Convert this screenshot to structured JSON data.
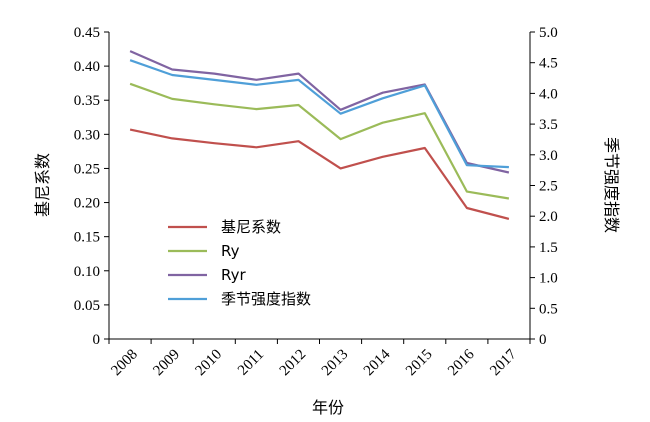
{
  "chart_data": {
    "type": "line",
    "xlabel": "年份",
    "ylabel_left": "基尼系数",
    "ylabel_right": "季节强度指数",
    "categories": [
      "2008",
      "2009",
      "2010",
      "2011",
      "2012",
      "2013",
      "2014",
      "2015",
      "2016",
      "2017"
    ],
    "ylim_left": [
      0,
      0.45
    ],
    "ylim_right": [
      0,
      5.0
    ],
    "left_ticks": [
      "0",
      "0.05",
      "0.10",
      "0.15",
      "0.20",
      "0.25",
      "0.30",
      "0.35",
      "0.40",
      "0.45"
    ],
    "right_ticks": [
      "0",
      "0.5",
      "1.0",
      "1.5",
      "2.0",
      "2.5",
      "3.0",
      "3.5",
      "4.0",
      "4.5",
      "5.0"
    ],
    "legend_position": "center-left",
    "series": [
      {
        "name": "基尼系数",
        "axis": "left",
        "color": "#c0504d",
        "values": [
          0.307,
          0.294,
          0.287,
          0.281,
          0.29,
          0.25,
          0.267,
          0.28,
          0.192,
          0.176
        ]
      },
      {
        "name": "Ry",
        "axis": "left",
        "color": "#9bbb59",
        "values": [
          0.374,
          0.352,
          0.344,
          0.337,
          0.343,
          0.293,
          0.317,
          0.331,
          0.216,
          0.206
        ]
      },
      {
        "name": "Ryr",
        "axis": "left",
        "color": "#8064a2",
        "values": [
          0.422,
          0.395,
          0.389,
          0.38,
          0.389,
          0.336,
          0.361,
          0.373,
          0.258,
          0.244
        ]
      },
      {
        "name": "季节强度指数",
        "axis": "right",
        "color": "#4f9fd8",
        "values": [
          4.54,
          4.3,
          4.22,
          4.14,
          4.22,
          3.67,
          3.92,
          4.13,
          2.83,
          2.8
        ]
      }
    ]
  }
}
